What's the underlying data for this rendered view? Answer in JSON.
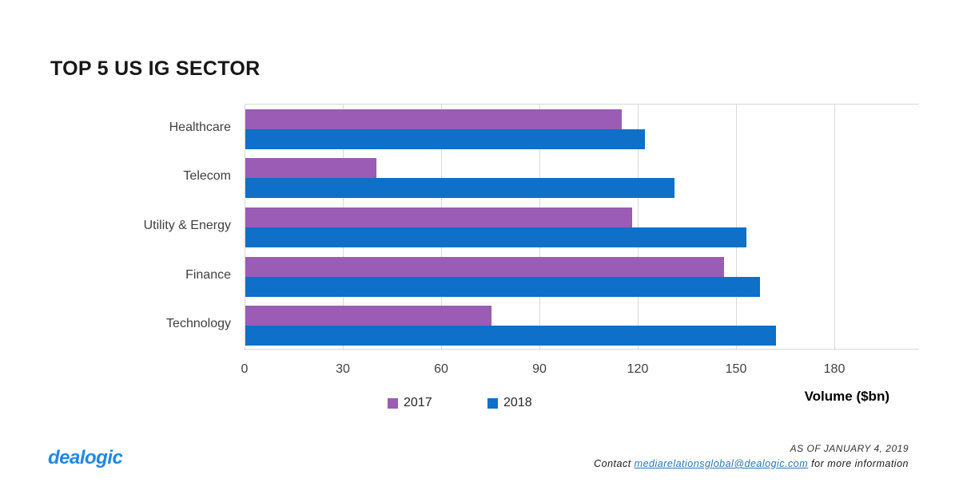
{
  "title": "TOP 5 US IG SECTOR",
  "chart_data": {
    "type": "bar",
    "orientation": "horizontal",
    "title": "TOP 5 US IG SECTOR",
    "categories": [
      "Healthcare",
      "Telecom",
      "Utility & Energy",
      "Finance",
      "Technology"
    ],
    "series": [
      {
        "name": "2017",
        "color": "#9a5cb4",
        "values": [
          115,
          40,
          118,
          146,
          75
        ]
      },
      {
        "name": "2018",
        "color": "#0e70c8",
        "values": [
          122,
          131,
          153,
          157,
          162
        ]
      }
    ],
    "xlabel": "Volume ($bn)",
    "xlim": [
      0,
      180
    ],
    "xticks": [
      0,
      30,
      60,
      90,
      120,
      150,
      180
    ],
    "grid": true,
    "gridline_color": "#d9d9d9",
    "legend_position": "bottom"
  },
  "footer": {
    "logo": "dealogic",
    "as_of": "AS OF JANUARY 4, 2019",
    "contact_prefix": "Contact ",
    "contact_link": "mediarelationsglobal@dealogic.com",
    "contact_suffix": " for more information"
  }
}
